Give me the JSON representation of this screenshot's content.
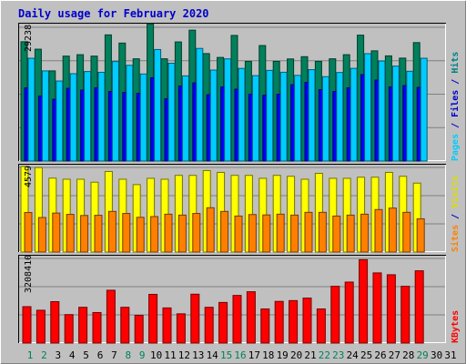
{
  "chart_data": {
    "type": "bar",
    "title": "Daily usage for February 2020",
    "x": [
      "1",
      "2",
      "3",
      "4",
      "5",
      "6",
      "7",
      "8",
      "9",
      "10",
      "11",
      "12",
      "13",
      "14",
      "15",
      "16",
      "17",
      "18",
      "19",
      "20",
      "21",
      "22",
      "23",
      "24",
      "25",
      "26",
      "27",
      "28",
      "29",
      "30",
      "31"
    ],
    "weekend_days": [
      1,
      2,
      8,
      9,
      15,
      16,
      22,
      23,
      29
    ],
    "panels": [
      {
        "name": "pages-files-hits",
        "max_label": "29238",
        "ymax": 29238,
        "right_label": [
          {
            "text": "Pages",
            "color": "#00ccff"
          },
          {
            "text": " / ",
            "color": "#0000cc"
          },
          {
            "text": "Files",
            "color": "#0000cc"
          },
          {
            "text": " / ",
            "color": "#0000cc"
          },
          {
            "text": "Hits",
            "color": "#008080"
          }
        ],
        "series": [
          {
            "name": "Hits",
            "color": "#00805c",
            "values": [
              26080,
              24450,
              19710,
              22940,
              23250,
              22940,
              27580,
              25790,
              22350,
              30000,
              22350,
              26040,
              28610,
              23490,
              22650,
              27460,
              21790,
              25250,
              21790,
              22320,
              22810,
              21790,
              22350,
              23250,
              27520,
              24090,
              22990,
              22500,
              25890
            ]
          },
          {
            "name": "Files",
            "color": "#0000ff",
            "values": [
              16000,
              14200,
              13500,
              15900,
              15500,
              16000,
              15200,
              15000,
              14800,
              18200,
              13600,
              16400,
              17100,
              14500,
              16200,
              15700,
              14600,
              14400,
              14600,
              16700,
              17200,
              15600,
              15200,
              16000,
              18900,
              17700,
              16200,
              16500,
              16100
            ]
          },
          {
            "name": "Pages",
            "color": "#00ccff",
            "values": [
              22470,
              19710,
              17500,
              19100,
              19570,
              19400,
              21750,
              20930,
              19030,
              24380,
              21390,
              18620,
              24620,
              19890,
              22340,
              20250,
              18680,
              19820,
              19410,
              18730,
              19980,
              18450,
              19360,
              20260,
              23470,
              21870,
              20750,
              19630,
              22470
            ]
          }
        ]
      },
      {
        "name": "sites-visits",
        "max_label": "4579",
        "ymax": 4579,
        "right_label": [
          {
            "text": "Sites",
            "color": "#ff8000"
          },
          {
            "text": " / ",
            "color": "#0000cc"
          },
          {
            "text": "Visits",
            "color": "#dddd00"
          }
        ],
        "series": [
          {
            "name": "Visits",
            "color": "#ffff00",
            "values": [
              4630,
              4570,
              4000,
              3940,
              3940,
              3780,
              4360,
              3940,
              3650,
              3990,
              3940,
              4150,
              4150,
              4410,
              4310,
              4150,
              4150,
              3990,
              4150,
              4100,
              3940,
              4260,
              3990,
              3990,
              4050,
              4050,
              4310,
              4100,
              3730
            ]
          },
          {
            "name": "Sites",
            "color": "#ff8000",
            "values": [
              2140,
              1870,
              2110,
              2040,
              1980,
              1990,
              2200,
              2090,
              1880,
              1920,
              2050,
              2000,
              2090,
              2400,
              2200,
              1950,
              2030,
              2010,
              2050,
              2000,
              2150,
              2150,
              1950,
              2000,
              2050,
              2300,
              2380,
              2150,
              1800
            ]
          }
        ]
      },
      {
        "name": "kbytes",
        "max_label": "3208410",
        "ymax": 3208410,
        "right_label": [
          {
            "text": "KBytes",
            "color": "#ff0000"
          }
        ],
        "series": [
          {
            "name": "KBytes",
            "color": "#ff0000",
            "values": [
              1380000,
              1244000,
              1570000,
              1079000,
              1356000,
              1157000,
              2002000,
              1356000,
              1053000,
              1846000,
              1332000,
              1109000,
              1853000,
              1356000,
              1540000,
              1806000,
              1946000,
              1294000,
              1580000,
              1610000,
              1705000,
              1294000,
              2152000,
              2312000,
              3160000,
              2660000,
              2590000,
              2152000,
              2740000
            ]
          }
        ]
      }
    ]
  }
}
